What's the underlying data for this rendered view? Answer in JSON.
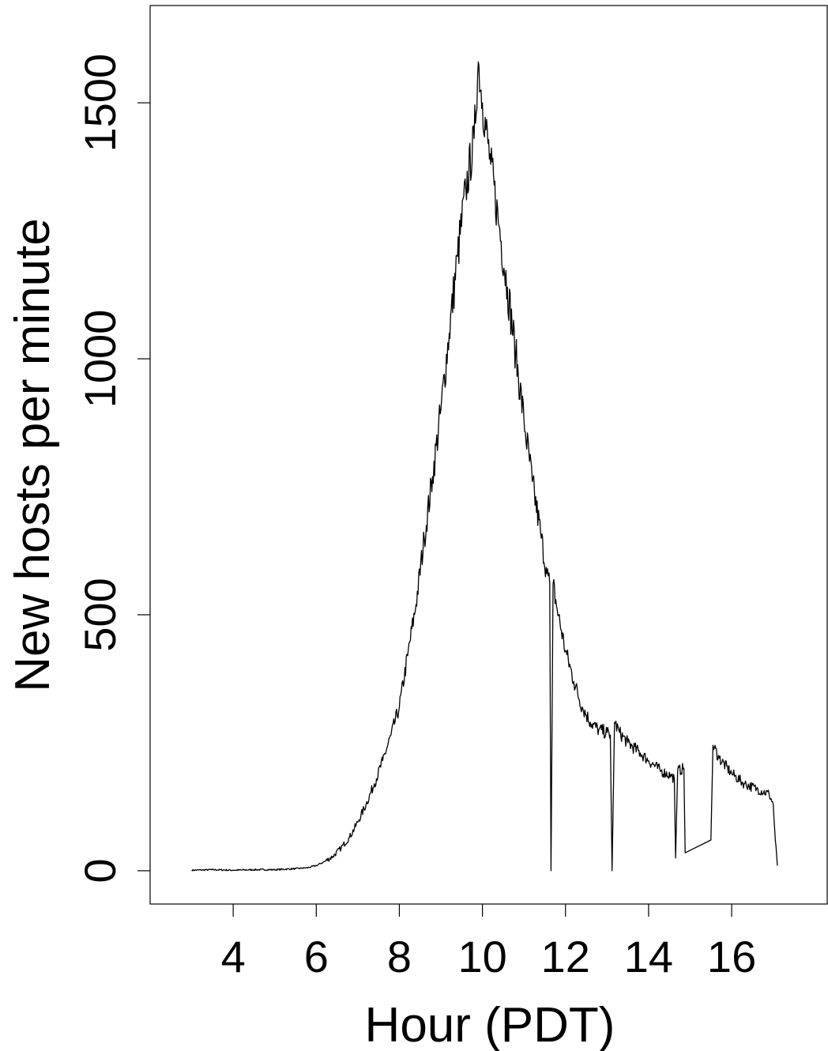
{
  "chart_data": {
    "type": "line",
    "title": "",
    "xlabel": "Hour (PDT)",
    "ylabel": "New hosts per minute",
    "xlim": [
      2.0,
      18.3
    ],
    "ylim": [
      -65,
      1690
    ],
    "xticks": [
      4,
      6,
      8,
      10,
      12,
      14,
      16
    ],
    "yticks": [
      0,
      500,
      1000,
      1500
    ],
    "grid": false,
    "line_color": "#000000",
    "series": [
      {
        "values_note": "",
        "x": [
          3.0,
          3.5,
          4.0,
          4.5,
          5.0,
          5.5,
          5.8,
          6.0,
          6.2,
          6.4,
          6.6,
          6.8,
          7.0,
          7.2,
          7.4,
          7.6,
          7.8,
          8.0,
          8.2,
          8.4,
          8.6,
          8.8,
          9.0,
          9.2,
          9.4,
          9.6,
          9.8,
          9.9,
          10.0,
          10.2,
          10.4,
          10.6,
          10.8,
          11.0,
          11.2,
          11.4,
          11.55,
          11.62,
          11.65,
          11.7,
          11.8,
          12.0,
          12.2,
          12.4,
          12.6,
          12.8,
          13.0,
          13.08,
          13.12,
          13.18,
          13.3,
          13.5,
          13.8,
          14.0,
          14.3,
          14.55,
          14.62,
          14.65,
          14.7,
          14.85,
          14.88,
          15.5,
          15.55,
          15.7,
          16.0,
          16.3,
          16.6,
          16.9,
          17.0,
          17.05,
          17.1
        ],
        "y": [
          1,
          2,
          1,
          2,
          2,
          4,
          6,
          10,
          18,
          28,
          45,
          65,
          95,
          130,
          170,
          215,
          265,
          320,
          420,
          520,
          650,
          770,
          900,
          1050,
          1200,
          1330,
          1430,
          1580,
          1500,
          1380,
          1260,
          1140,
          1010,
          880,
          760,
          660,
          580,
          560,
          0,
          560,
          510,
          430,
          370,
          320,
          290,
          275,
          270,
          265,
          0,
          290,
          270,
          250,
          230,
          215,
          195,
          185,
          180,
          25,
          195,
          200,
          35,
          60,
          245,
          220,
          190,
          170,
          160,
          150,
          130,
          60,
          10
        ]
      }
    ]
  }
}
